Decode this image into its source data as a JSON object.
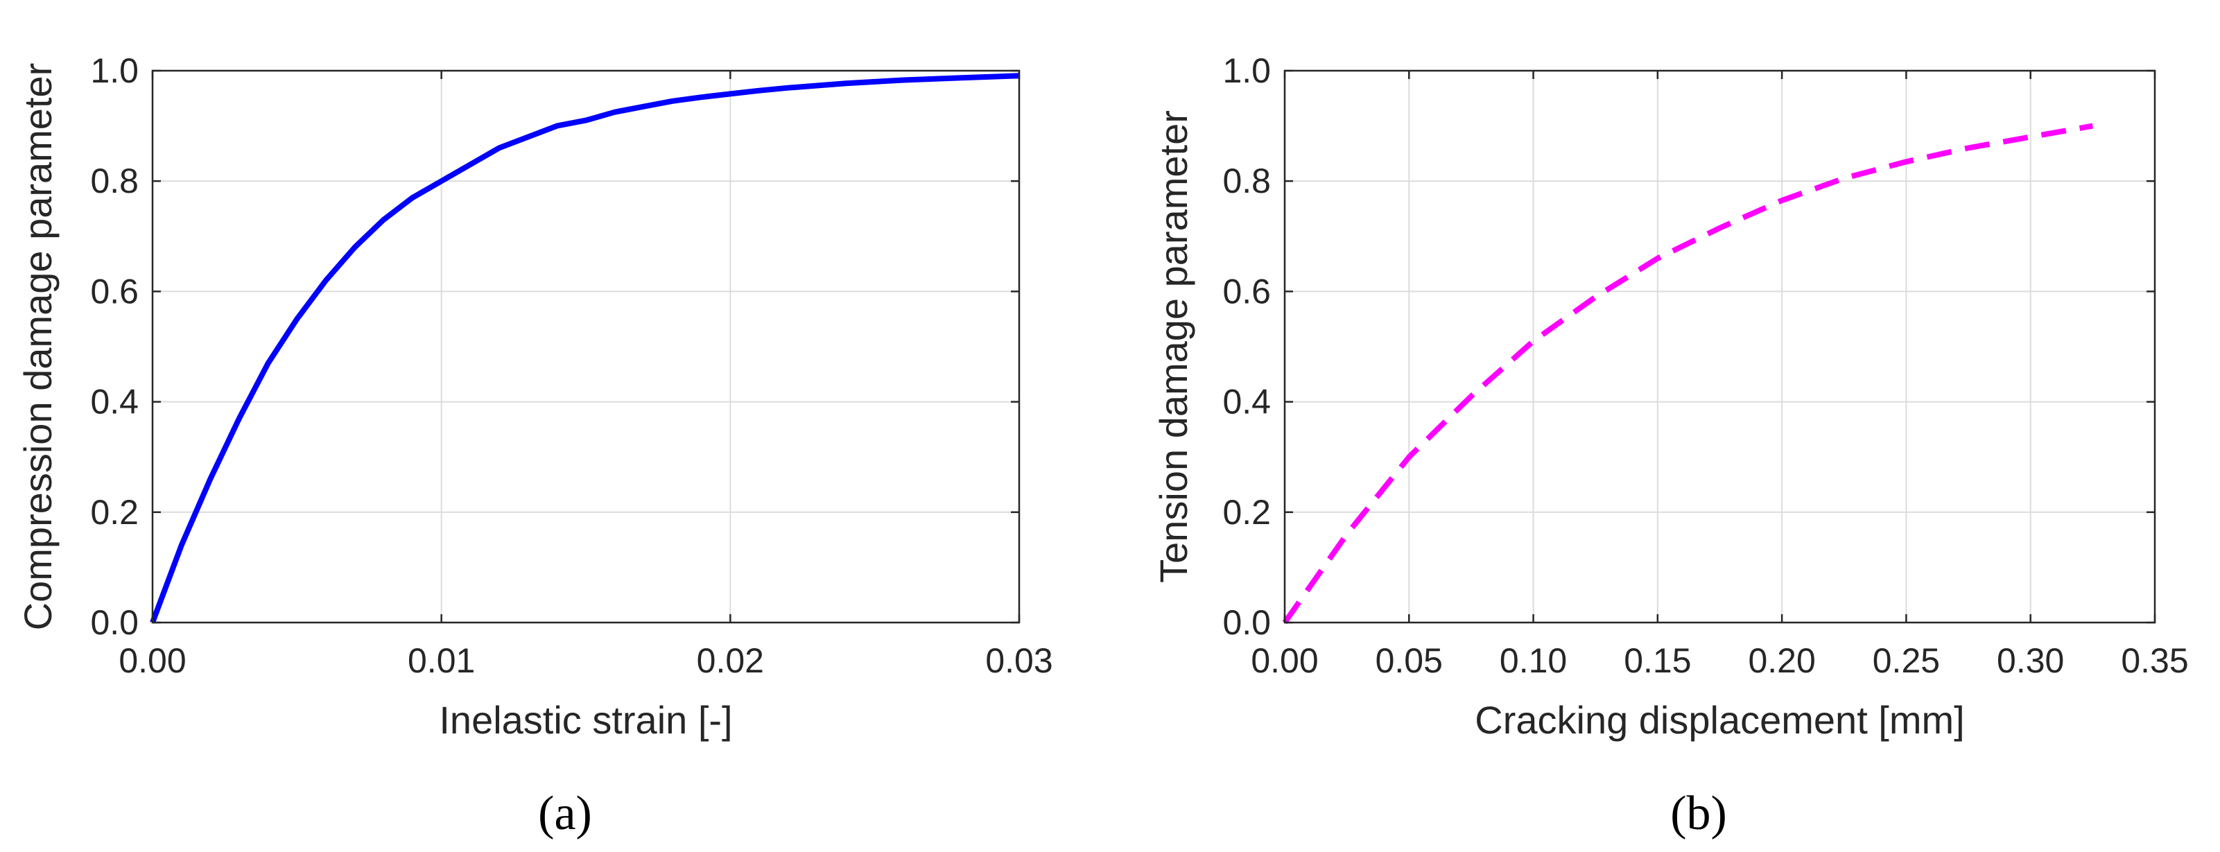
{
  "chart_data": [
    {
      "type": "line",
      "panel_label": "(a)",
      "title": "",
      "xlabel": "Inelastic strain [-]",
      "ylabel": "Compression damage parameter",
      "xlim": [
        0,
        0.03
      ],
      "ylim": [
        0,
        1.0
      ],
      "xticks": [
        0,
        0.01,
        0.02,
        0.03
      ],
      "xtick_labels": [
        "0.00",
        "0.01",
        "0.02",
        "0.03"
      ],
      "yticks": [
        0,
        0.2,
        0.4,
        0.6,
        0.8,
        1.0
      ],
      "ytick_labels": [
        "0.0",
        "0.2",
        "0.4",
        "0.6",
        "0.8",
        "1.0"
      ],
      "grid": true,
      "series": [
        {
          "line_style": "solid",
          "color": "#0000FF",
          "x": [
            0,
            0.001,
            0.002,
            0.003,
            0.004,
            0.005,
            0.006,
            0.007,
            0.008,
            0.009,
            0.01,
            0.011,
            0.012,
            0.013,
            0.014,
            0.015,
            0.016,
            0.017,
            0.018,
            0.019,
            0.02,
            0.021,
            0.022,
            0.023,
            0.024,
            0.025,
            0.026,
            0.027,
            0.028,
            0.029,
            0.03
          ],
          "y": [
            0,
            0.14,
            0.26,
            0.37,
            0.47,
            0.55,
            0.62,
            0.68,
            0.73,
            0.77,
            0.8,
            0.83,
            0.86,
            0.88,
            0.9,
            0.91,
            0.925,
            0.935,
            0.945,
            0.952,
            0.958,
            0.964,
            0.969,
            0.973,
            0.977,
            0.98,
            0.983,
            0.985,
            0.987,
            0.989,
            0.991
          ]
        }
      ]
    },
    {
      "type": "line",
      "panel_label": "(b)",
      "title": "",
      "xlabel": "Cracking displacement [mm]",
      "ylabel": "Tension damage parameter",
      "xlim": [
        0,
        0.35
      ],
      "ylim": [
        0,
        1.0
      ],
      "xticks": [
        0,
        0.05,
        0.1,
        0.15,
        0.2,
        0.25,
        0.3,
        0.35
      ],
      "xtick_labels": [
        "0.00",
        "0.05",
        "0.10",
        "0.15",
        "0.20",
        "0.25",
        "0.30",
        "0.35"
      ],
      "yticks": [
        0,
        0.2,
        0.4,
        0.6,
        0.8,
        1.0
      ],
      "ytick_labels": [
        "0.0",
        "0.2",
        "0.4",
        "0.6",
        "0.8",
        "1.0"
      ],
      "grid": true,
      "series": [
        {
          "line_style": "dashed",
          "color": "#FF00FF",
          "x": [
            0,
            0.025,
            0.05,
            0.075,
            0.1,
            0.125,
            0.15,
            0.175,
            0.2,
            0.225,
            0.25,
            0.275,
            0.3,
            0.325
          ],
          "y": [
            0,
            0.16,
            0.3,
            0.41,
            0.51,
            0.59,
            0.66,
            0.715,
            0.765,
            0.805,
            0.835,
            0.86,
            0.88,
            0.9
          ]
        }
      ]
    }
  ]
}
